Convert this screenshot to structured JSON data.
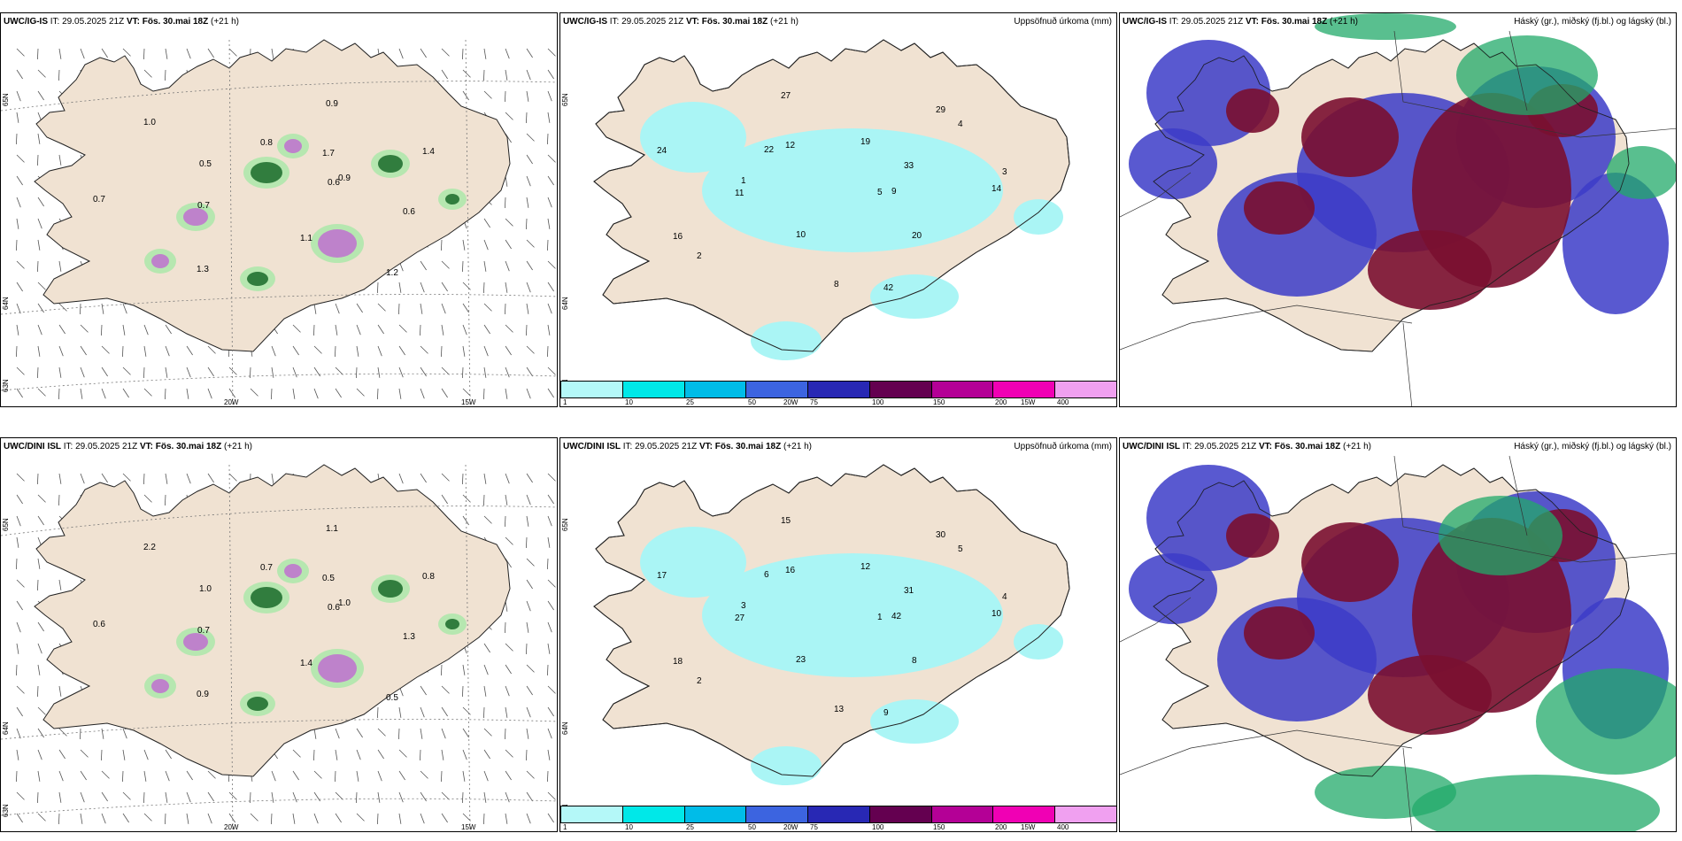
{
  "colors": {
    "land": "#f0e2d2",
    "ocean": "#ffffff",
    "precip_light": "#aaf5f5",
    "high_cloud": "#7a1030",
    "mid_cloud": "#3c3cc8",
    "low_cloud": "#22aa6a"
  },
  "rows": [
    {
      "model": "UWC/IG-IS",
      "it_label": "IT:",
      "it_value": "29.05.2025 21Z",
      "vt_label": "VT:",
      "vt_value": "Fös. 30.mai 18Z",
      "lead": "(+21 h)"
    },
    {
      "model": "UWC/DINI ISL",
      "it_label": "IT:",
      "it_value": "29.05.2025 21Z",
      "vt_label": "VT:",
      "vt_value": "Fös. 30.mai 18Z",
      "lead": "(+21 h)"
    }
  ],
  "precip_title": "Uppsöfnuð úrkoma (mm)",
  "cloud_title": "Háský (gr.), miðský (fj.bl.) og lágský (bl.)",
  "lat_labels": [
    "65N",
    "64N",
    "63N"
  ],
  "lon_labels": [
    "20W",
    "15W"
  ],
  "colorbar": {
    "ticks": [
      "1",
      "10",
      "25",
      "50",
      "75",
      "100",
      "150",
      "200",
      "400"
    ],
    "colors": [
      "#b4f8f8",
      "#00e8e8",
      "#00bce8",
      "#3c64e0",
      "#2828b4",
      "#640050",
      "#b40096",
      "#f000b4",
      "#f0a0f0"
    ]
  },
  "wind_values_top": [
    "0.6",
    "0.7",
    "0.9",
    "1.2",
    "0.5",
    "1.4",
    "1.3",
    "0.8",
    "0.6",
    "0.7",
    "1.7",
    "1.1",
    "1.0",
    "0.9"
  ],
  "wind_values_bottom": [
    "0.6",
    "0.7",
    "1.1",
    "0.5",
    "1.0",
    "0.8",
    "0.9",
    "0.7",
    "1.3",
    "0.6",
    "0.5",
    "1.4",
    "2.2",
    "1.0"
  ],
  "precip_values_top": [
    "5",
    "1",
    "4",
    "8",
    "12",
    "14",
    "16",
    "19",
    "20",
    "24",
    "33",
    "10",
    "27",
    "9",
    "11",
    "29",
    "42",
    "22",
    "3",
    "2"
  ],
  "precip_values_bottom": [
    "1",
    "3",
    "5",
    "13",
    "16",
    "10",
    "18",
    "12",
    "8",
    "17",
    "31",
    "23",
    "15",
    "42",
    "27",
    "30",
    "9",
    "6",
    "4",
    "2"
  ]
}
